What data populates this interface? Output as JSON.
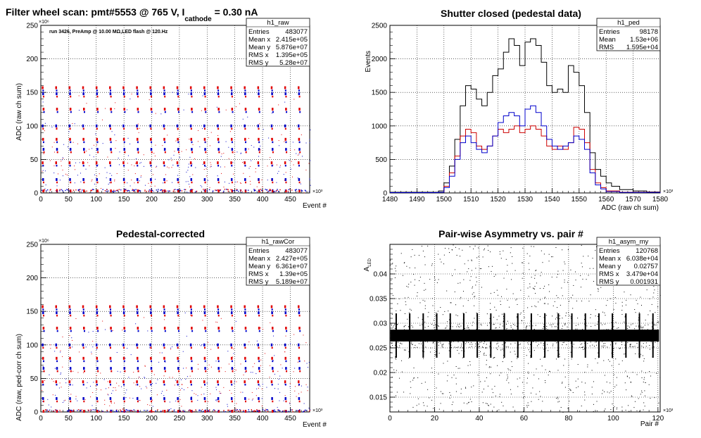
{
  "chart_data": [
    {
      "id": "raw",
      "type": "scatter",
      "title_main": "Filter wheel scan: pmt#5553 @   765 V, I",
      "title_sub": "cathode",
      "title_end": " = 0.30 nA",
      "annotation": "run 3426, PreAmp @ 10.00 MΩ,LED flash @  120.Hz",
      "xlabel": "Event #",
      "ylabel": "ADC (raw ch sum)",
      "x_exponent": "×10³",
      "y_exponent": "×10⁶",
      "xlim": [
        0,
        485
      ],
      "ylim": [
        0,
        250
      ],
      "xticks": [
        "0",
        "50",
        "100",
        "150",
        "200",
        "250",
        "300",
        "350",
        "400",
        "450"
      ],
      "yticks": [
        "0",
        "50",
        "100",
        "150",
        "200",
        "250"
      ],
      "grid": true,
      "level_values": [
        157,
        148,
        125,
        100,
        80,
        65,
        45,
        20,
        3
      ],
      "group_period": 24.3,
      "colors": {
        "red": "#e00000",
        "blue": "#0000c8"
      },
      "stats": {
        "name": "h1_raw",
        "rows": [
          [
            "Entries",
            "483077"
          ],
          [
            "Mean x",
            "2.415e+05"
          ],
          [
            "Mean y",
            "5.876e+07"
          ],
          [
            "RMS x",
            "1.395e+05"
          ],
          [
            "RMS y",
            "5.28e+07"
          ]
        ]
      }
    },
    {
      "id": "ped",
      "type": "line",
      "title": "Shutter closed (pedestal data)",
      "xlabel": "ADC (raw ch sum)",
      "ylabel": "Events",
      "x_exponent": "×10³",
      "xlim": [
        1480,
        1580
      ],
      "ylim": [
        0,
        2500
      ],
      "xticks": [
        "1480",
        "1490",
        "1500",
        "1510",
        "1520",
        "1530",
        "1540",
        "1550",
        "1560",
        "1570",
        "1580"
      ],
      "yticks": [
        "0",
        "500",
        "1000",
        "1500",
        "2000",
        "2500"
      ],
      "grid": true,
      "stats": {
        "name": "h1_ped",
        "rows": [
          [
            "Entries",
            "98178"
          ],
          [
            "Mean",
            "1.53e+06"
          ],
          [
            "RMS",
            "1.595e+04"
          ]
        ]
      },
      "series": [
        {
          "color": "#000000",
          "x": [
            1480,
            1496,
            1498,
            1500,
            1502,
            1504,
            1506,
            1508,
            1510,
            1512,
            1514,
            1516,
            1518,
            1520,
            1522,
            1524,
            1526,
            1528,
            1530,
            1532,
            1534,
            1536,
            1538,
            1540,
            1542,
            1544,
            1546,
            1548,
            1550,
            1552,
            1554,
            1556,
            1558,
            1560,
            1562,
            1565,
            1570,
            1575,
            1580
          ],
          "values": [
            10,
            10,
            30,
            150,
            400,
            800,
            1300,
            1600,
            1550,
            1400,
            1300,
            1500,
            1750,
            1850,
            2100,
            2300,
            2200,
            1900,
            2250,
            2300,
            2200,
            1950,
            1600,
            1500,
            1550,
            1500,
            1900,
            1800,
            1600,
            1200,
            600,
            350,
            250,
            150,
            100,
            50,
            30,
            15,
            5
          ]
        },
        {
          "color": "#cc0000",
          "x": [
            1480,
            1498,
            1500,
            1502,
            1504,
            1506,
            1508,
            1510,
            1512,
            1514,
            1516,
            1518,
            1520,
            1522,
            1524,
            1526,
            1528,
            1530,
            1532,
            1534,
            1536,
            1538,
            1540,
            1542,
            1544,
            1546,
            1548,
            1550,
            1552,
            1554,
            1556,
            1558,
            1560,
            1565,
            1580
          ],
          "values": [
            5,
            10,
            100,
            300,
            550,
            850,
            950,
            900,
            700,
            650,
            700,
            850,
            950,
            900,
            950,
            1000,
            900,
            950,
            1000,
            950,
            850,
            700,
            650,
            700,
            650,
            750,
            980,
            950,
            750,
            350,
            150,
            80,
            30,
            10,
            5
          ]
        },
        {
          "color": "#0000cc",
          "x": [
            1480,
            1498,
            1500,
            1502,
            1504,
            1506,
            1508,
            1510,
            1512,
            1514,
            1516,
            1518,
            1520,
            1522,
            1524,
            1526,
            1528,
            1530,
            1532,
            1534,
            1536,
            1538,
            1540,
            1542,
            1544,
            1546,
            1548,
            1550,
            1552,
            1554,
            1556,
            1558,
            1560,
            1565,
            1580
          ],
          "values": [
            5,
            10,
            80,
            250,
            500,
            750,
            850,
            750,
            650,
            600,
            700,
            850,
            1050,
            1150,
            1200,
            1150,
            1000,
            1250,
            1300,
            1200,
            1000,
            800,
            700,
            650,
            700,
            750,
            850,
            800,
            650,
            300,
            120,
            60,
            20,
            8,
            3
          ]
        }
      ]
    },
    {
      "id": "rawCor",
      "type": "scatter",
      "title": "Pedestal-corrected",
      "xlabel": "Event #",
      "ylabel": "ADC (raw, ped-corr ch sum)",
      "x_exponent": "×10³",
      "y_exponent": "×10⁶",
      "xlim": [
        0,
        485
      ],
      "ylim": [
        0,
        250
      ],
      "xticks": [
        "0",
        "50",
        "100",
        "150",
        "200",
        "250",
        "300",
        "350",
        "400",
        "450"
      ],
      "yticks": [
        "0",
        "50",
        "100",
        "150",
        "200",
        "250"
      ],
      "grid": true,
      "level_values": [
        157,
        148,
        125,
        100,
        80,
        65,
        45,
        20,
        1
      ],
      "group_period": 24.3,
      "colors": {
        "red": "#e00000",
        "blue": "#0000c8"
      },
      "stats": {
        "name": "h1_rawCor",
        "rows": [
          [
            "Entries",
            "483077"
          ],
          [
            "Mean x",
            "2.427e+05"
          ],
          [
            "Mean y",
            "6.361e+07"
          ],
          [
            "RMS x",
            "1.39e+05"
          ],
          [
            "RMS y",
            "5.189e+07"
          ]
        ]
      }
    },
    {
      "id": "asym",
      "type": "scatter",
      "title": "Pair-wise Asymmetry vs. pair #",
      "xlabel": "Pair #",
      "ylabel": "A",
      "ylabel_sub": "LED",
      "x_exponent": "×10³",
      "xlim": [
        0,
        121
      ],
      "ylim": [
        0.012,
        0.046
      ],
      "xticks": [
        "0",
        "20",
        "40",
        "60",
        "80",
        "100",
        "120"
      ],
      "yticks": [
        "0.015",
        "0.02",
        "0.025",
        "0.03",
        "0.035",
        "0.04"
      ],
      "grid": true,
      "band_center": 0.0275,
      "band_halfwidth": 0.0012,
      "spike_period": 6.05,
      "stats": {
        "name": "h1_asym_my",
        "rows": [
          [
            "Entries",
            "120768"
          ],
          [
            "Mean x",
            "6.038e+04"
          ],
          [
            "Mean y",
            "0.02757"
          ],
          [
            "RMS x",
            "3.479e+04"
          ],
          [
            "RMS y",
            "0.001931"
          ]
        ]
      }
    }
  ]
}
